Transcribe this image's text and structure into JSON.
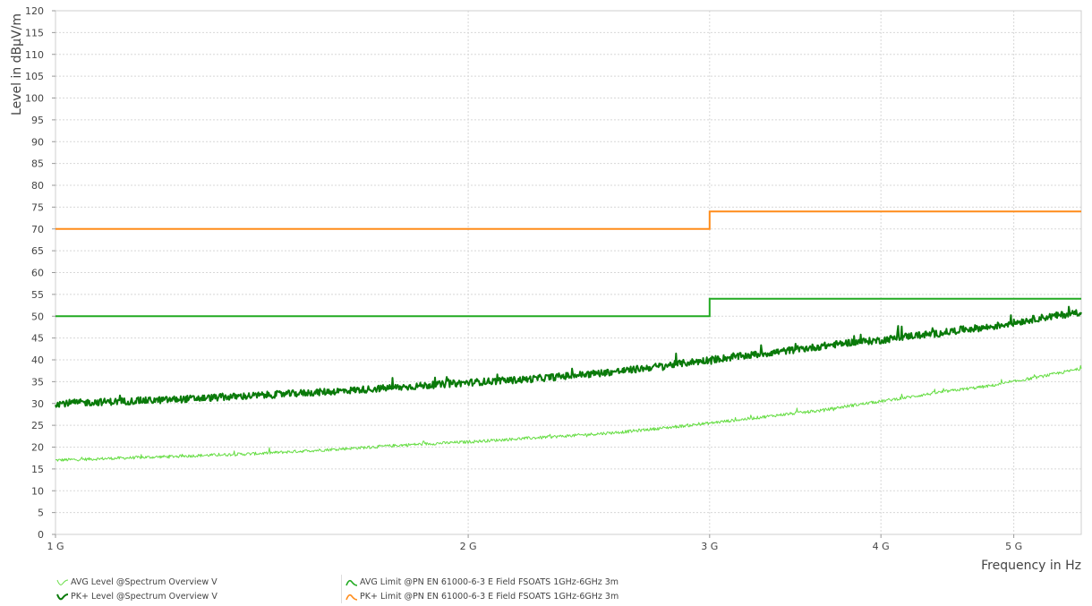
{
  "chart_data": {
    "type": "line",
    "xlabel": "Frequency in Hz",
    "ylabel": "Level in dBµV/m",
    "x_scale": "log",
    "x_unit": "Hz",
    "xlim": [
      1000000000,
      5600000000
    ],
    "ylim": [
      0,
      120
    ],
    "x_ticks": [
      {
        "value": 1000000000,
        "label": "1 G"
      },
      {
        "value": 2000000000,
        "label": "2 G"
      },
      {
        "value": 3000000000,
        "label": "3 G"
      },
      {
        "value": 4000000000,
        "label": "4 G"
      },
      {
        "value": 5000000000,
        "label": "5 G"
      }
    ],
    "y_ticks": [
      0,
      5,
      10,
      15,
      20,
      25,
      30,
      35,
      40,
      45,
      50,
      55,
      60,
      65,
      70,
      75,
      80,
      85,
      90,
      95,
      100,
      105,
      110,
      115,
      120
    ],
    "grid": true,
    "legend_position": "bottom-left",
    "series": [
      {
        "name": "AVG Level @Spectrum Overview V",
        "color": "#66dd44",
        "style": "noisy-trace",
        "x": [
          1000000000,
          1200000000,
          1400000000,
          1600000000,
          1800000000,
          2000000000,
          2200000000,
          2400000000,
          2600000000,
          2800000000,
          3000000000,
          3200000000,
          3400000000,
          3600000000,
          3800000000,
          4000000000,
          4200000000,
          4400000000,
          4600000000,
          4800000000,
          5000000000,
          5200000000,
          5400000000,
          5600000000
        ],
        "values": [
          17,
          17.8,
          18.5,
          19.5,
          20.5,
          21.2,
          22,
          22.7,
          23.5,
          24.5,
          25.5,
          26.5,
          27.5,
          28.3,
          29.5,
          30.5,
          31.5,
          32.5,
          33.3,
          34,
          35,
          36,
          37,
          38
        ]
      },
      {
        "name": "PK+ Level @Spectrum Overview V",
        "color": "#0a7a0a",
        "style": "noisy-trace",
        "x": [
          1000000000,
          1200000000,
          1400000000,
          1600000000,
          1800000000,
          2000000000,
          2200000000,
          2400000000,
          2600000000,
          2800000000,
          3000000000,
          3200000000,
          3400000000,
          3600000000,
          3800000000,
          4000000000,
          4200000000,
          4400000000,
          4600000000,
          4800000000,
          5000000000,
          5200000000,
          5400000000,
          5600000000
        ],
        "values": [
          30,
          30.8,
          31.8,
          32.8,
          33.8,
          34.8,
          35.5,
          36.5,
          37.5,
          38.8,
          40,
          41,
          42,
          43,
          44,
          44.5,
          45.5,
          46,
          47,
          47.5,
          48.5,
          49.5,
          50.2,
          51
        ]
      },
      {
        "name": "AVG Limit @PN EN 61000-6-3 E Field  FSOATS 1GHz-6GHz 3m",
        "color": "#22aa22",
        "style": "step",
        "x": [
          1000000000,
          3000000000,
          3000000000,
          5600000000
        ],
        "values": [
          50,
          50,
          54,
          54
        ]
      },
      {
        "name": "PK+ Limit @PN EN 61000-6-3 E Field  FSOATS 1GHz-6GHz 3m",
        "color": "#ff8c1a",
        "style": "step",
        "x": [
          1000000000,
          3000000000,
          3000000000,
          5600000000
        ],
        "values": [
          70,
          70,
          74,
          74
        ]
      }
    ]
  }
}
